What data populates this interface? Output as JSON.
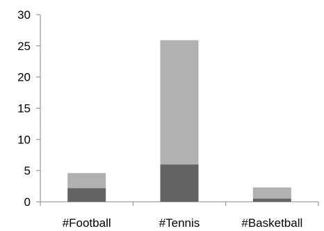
{
  "chart_data": {
    "type": "bar",
    "stacked": true,
    "categories": [
      "#Football",
      "#Tennis",
      "#Basketball"
    ],
    "series": [
      {
        "color": "#636363",
        "values": [
          2.2,
          6.0,
          0.5
        ]
      },
      {
        "color": "#b1b1b1",
        "values": [
          2.4,
          19.9,
          1.8
        ]
      }
    ],
    "ylim": [
      0,
      30
    ],
    "yticks": [
      "0",
      "5",
      "10",
      "15",
      "20",
      "25",
      "30"
    ],
    "grid": false,
    "legend": "none"
  }
}
